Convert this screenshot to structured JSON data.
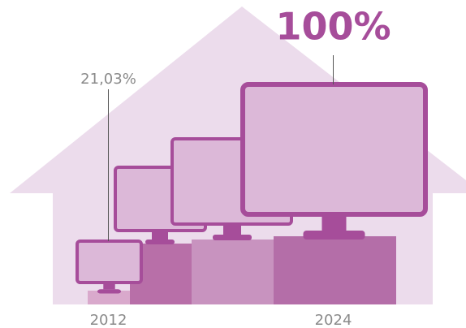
{
  "chart_data": {
    "type": "pictograph",
    "categories": [
      "2012",
      "2024"
    ],
    "values": [
      21.03,
      100
    ],
    "value_labels": [
      "21,03%",
      "100%"
    ],
    "color": "#a64d9a"
  }
}
